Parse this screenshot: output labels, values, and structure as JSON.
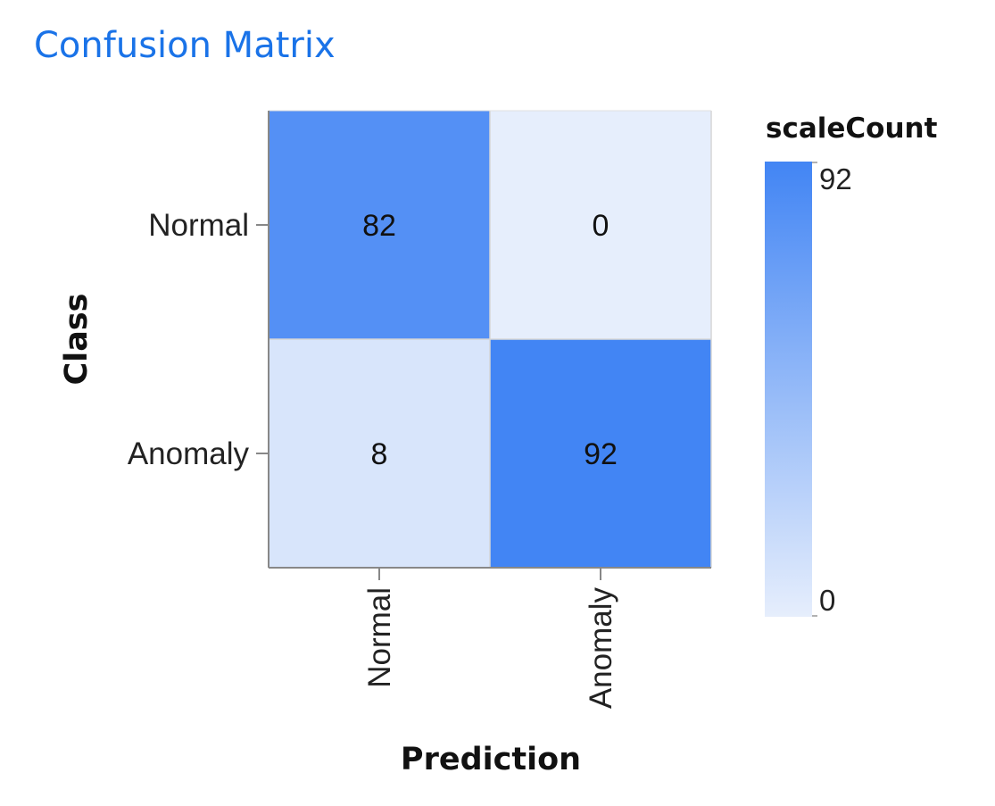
{
  "page": {
    "title": "Confusion Matrix",
    "title_color": "#1a73e8"
  },
  "chart_data": {
    "type": "heatmap",
    "y_label": "Class",
    "x_label": "Prediction",
    "rows": [
      "Normal",
      "Anomaly"
    ],
    "columns": [
      "Normal",
      "Anomaly"
    ],
    "values": [
      [
        82,
        0
      ],
      [
        8,
        92
      ]
    ],
    "legend": {
      "title": "scaleCount",
      "min": 0,
      "max": 92,
      "min_label": "0",
      "max_label": "92",
      "min_color": "#e6eefc",
      "max_color": "#4285f4",
      "placement": "right"
    }
  }
}
